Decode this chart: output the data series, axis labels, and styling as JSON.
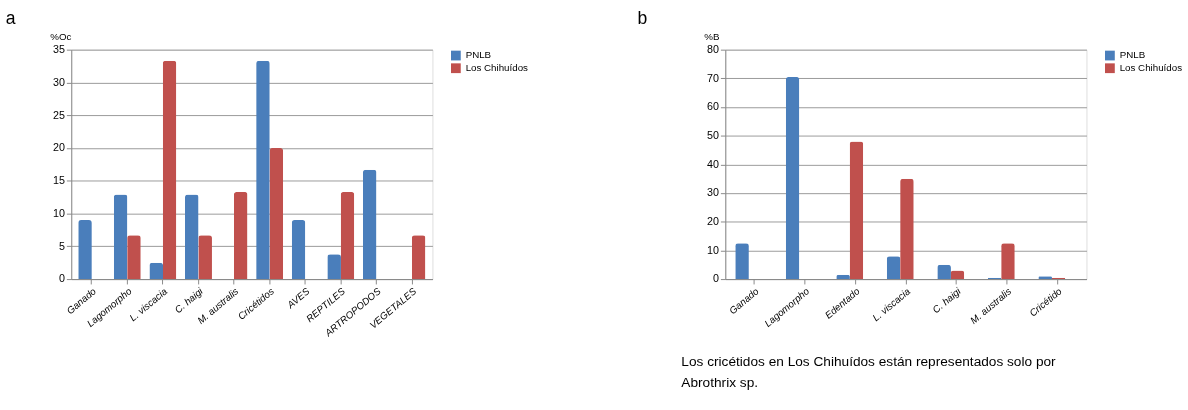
{
  "chart_data": [
    {
      "type": "bar",
      "title": "a",
      "ylabel": "%Oc",
      "categories": [
        "Ganado",
        "Lagomorpho",
        "L. viscacia",
        "C. haigi",
        "M. australis",
        "Cricétidos",
        "AVES",
        "REPTILES",
        "ARTROPODOS",
        "VEGETALES"
      ],
      "series": [
        {
          "name": "PNLB",
          "color": "#4a7ebb",
          "values": [
            9,
            12.9,
            2.5,
            12.9,
            null,
            33.3,
            9,
            3.8,
            16.7,
            null
          ]
        },
        {
          "name": "Los Chihuídos",
          "color": "#c0504d",
          "values": [
            null,
            6.7,
            33.3,
            6.7,
            13.3,
            20,
            null,
            13.3,
            null,
            6.7
          ]
        }
      ],
      "ylim": [
        0,
        35
      ],
      "yticks": [
        0,
        5,
        10,
        15,
        20,
        25,
        30,
        35
      ],
      "grid": "y",
      "legend": "right"
    },
    {
      "type": "bar",
      "title": "b",
      "ylabel": "%B",
      "categories": [
        "Ganado",
        "Lagomorpho",
        "Edentado",
        "L. viscacia",
        "C. haigi",
        "M. australis",
        "Cricétido"
      ],
      "series": [
        {
          "name": "PNLB",
          "color": "#4a7ebb",
          "values": [
            12.5,
            70.5,
            1.5,
            8,
            5,
            0.5,
            1
          ]
        },
        {
          "name": "Los Chihuídos",
          "color": "#c0504d",
          "values": [
            null,
            null,
            48,
            35,
            3,
            12.5,
            0.5
          ]
        }
      ],
      "ylim": [
        0,
        80
      ],
      "yticks": [
        0,
        10,
        20,
        30,
        40,
        50,
        60,
        70,
        80
      ],
      "grid": "y",
      "legend": "right",
      "annotations": [
        "Los cricétidos en Los Chihuídos están representados solo por Abrothrix sp."
      ]
    }
  ]
}
